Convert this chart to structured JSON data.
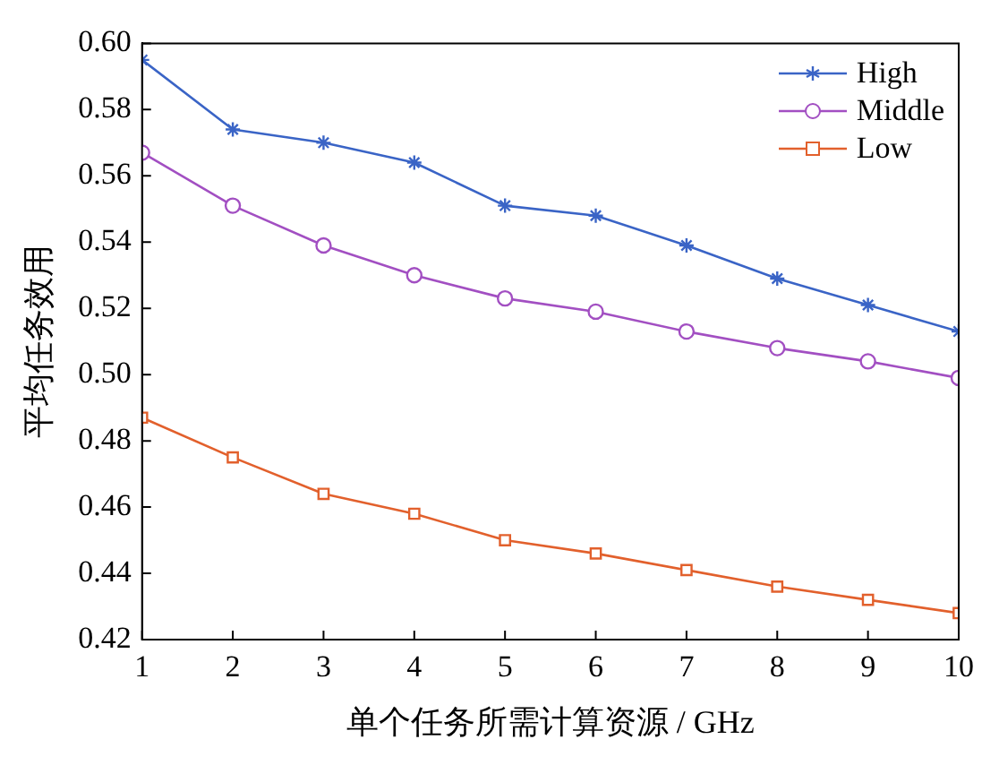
{
  "chart_data": {
    "type": "line",
    "xlabel": "单个任务所需计算资源 / GHz",
    "ylabel": "平均任务效用",
    "x": [
      1,
      2,
      3,
      4,
      5,
      6,
      7,
      8,
      9,
      10
    ],
    "xlim": [
      1,
      10
    ],
    "xticks": [
      1,
      2,
      3,
      4,
      5,
      6,
      7,
      8,
      9,
      10
    ],
    "ylim": [
      0.42,
      0.6
    ],
    "yticks": [
      {
        "value": 0.42,
        "label": "0.42"
      },
      {
        "value": 0.44,
        "label": "0.44"
      },
      {
        "value": 0.46,
        "label": "0.46"
      },
      {
        "value": 0.48,
        "label": "0.48"
      },
      {
        "value": 0.5,
        "label": "0.50"
      },
      {
        "value": 0.52,
        "label": "0.52"
      },
      {
        "value": 0.54,
        "label": "0.54"
      },
      {
        "value": 0.56,
        "label": "0.56"
      },
      {
        "value": 0.58,
        "label": "0.58"
      },
      {
        "value": 0.6,
        "label": "0.60"
      }
    ],
    "grid": false,
    "legend": "top right",
    "line_style": "solid",
    "series": [
      {
        "name": "High",
        "color": "#3a64c6",
        "marker": "cross",
        "values": [
          0.595,
          0.574,
          0.57,
          0.564,
          0.551,
          0.548,
          0.539,
          0.529,
          0.521,
          0.513
        ]
      },
      {
        "name": "Middle",
        "color": "#a24fc2",
        "marker": "circle",
        "values": [
          0.567,
          0.551,
          0.539,
          0.53,
          0.523,
          0.519,
          0.513,
          0.508,
          0.504,
          0.499
        ]
      },
      {
        "name": "Low",
        "color": "#e2602c",
        "marker": "square",
        "values": [
          0.487,
          0.475,
          0.464,
          0.458,
          0.45,
          0.446,
          0.441,
          0.436,
          0.432,
          0.428
        ]
      }
    ]
  }
}
